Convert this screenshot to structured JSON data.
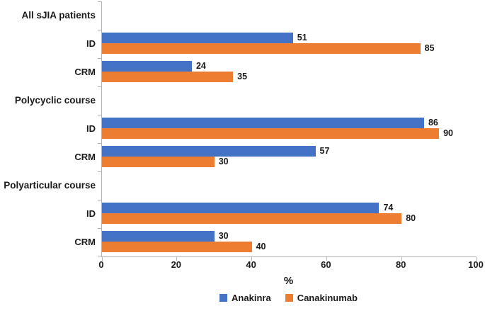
{
  "chart_data": {
    "type": "bar",
    "orientation": "horizontal",
    "title": "",
    "xlabel": "%",
    "ylabel": "",
    "xlim": [
      0,
      100
    ],
    "x_ticks": [
      0,
      20,
      40,
      60,
      80,
      100
    ],
    "grid": false,
    "legend_position": "bottom-center",
    "categories": [
      "All sJIA patients",
      "ID",
      "CRM",
      "Polycyclic course",
      "ID",
      "CRM",
      "Polyarticular course",
      "ID",
      "CRM"
    ],
    "category_types": [
      "header",
      "data",
      "data",
      "header",
      "data",
      "data",
      "header",
      "data",
      "data"
    ],
    "series": [
      {
        "name": "Anakinra",
        "color": "#4472C4",
        "values": [
          null,
          51,
          24,
          null,
          86,
          57,
          null,
          74,
          30
        ]
      },
      {
        "name": "Canakinumab",
        "color": "#ED7D31",
        "values": [
          null,
          85,
          35,
          null,
          90,
          30,
          null,
          80,
          40
        ]
      }
    ],
    "groups": [
      {
        "header": "All sJIA patients",
        "rows": [
          {
            "label": "ID",
            "Anakinra": 51,
            "Canakinumab": 85
          },
          {
            "label": "CRM",
            "Anakinra": 24,
            "Canakinumab": 35
          }
        ]
      },
      {
        "header": "Polycyclic course",
        "rows": [
          {
            "label": "ID",
            "Anakinra": 86,
            "Canakinumab": 90
          },
          {
            "label": "CRM",
            "Anakinra": 57,
            "Canakinumab": 30
          }
        ]
      },
      {
        "header": "Polyarticular course",
        "rows": [
          {
            "label": "ID",
            "Anakinra": 74,
            "Canakinumab": 80
          },
          {
            "label": "CRM",
            "Anakinra": 30,
            "Canakinumab": 40
          }
        ]
      }
    ],
    "colors": {
      "axis_line": "#b3b3b3",
      "text": "#1a1a1a"
    }
  }
}
